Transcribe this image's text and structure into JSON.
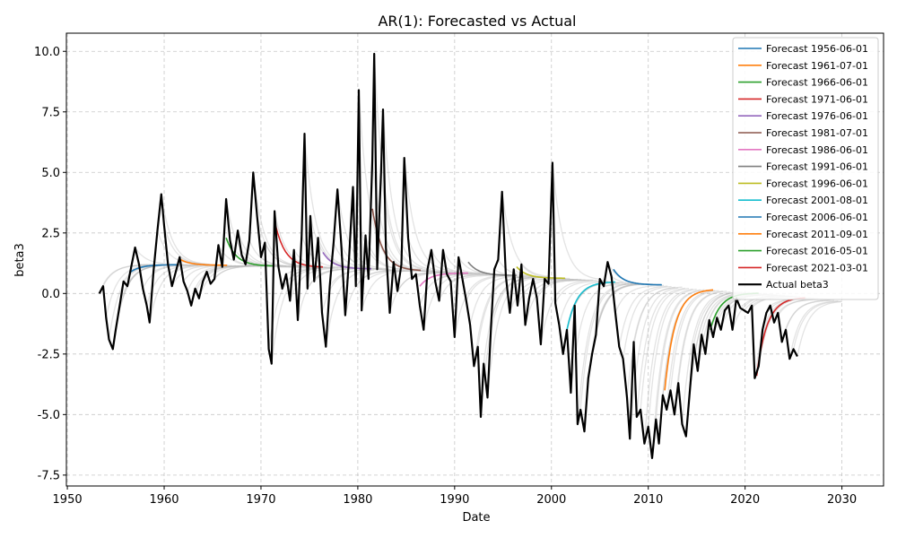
{
  "chart_data": {
    "type": "line",
    "title": "AR(1): Forecasted vs Actual",
    "xlabel": "Date",
    "ylabel": "beta3",
    "xlim": [
      1949.9,
      2034.3
    ],
    "ylim": [
      -7.95,
      10.75
    ],
    "x_ticks": [
      1950,
      1960,
      1970,
      1980,
      1990,
      2000,
      2010,
      2020,
      2030
    ],
    "y_ticks": [
      -7.5,
      -5.0,
      -2.5,
      0.0,
      2.5,
      5.0,
      7.5,
      10.0
    ],
    "grid": true,
    "legend_position": "top-right",
    "colors": {
      "actual": "#000000",
      "background_forecast": "#b0b0b0",
      "grid": "#b0b0b0"
    },
    "series": [
      {
        "name": "Forecast 1956-06-01",
        "color": "#1f77b4",
        "start": [
          1956.4,
          0.85
        ],
        "end_year": 1961.4
      },
      {
        "name": "Forecast 1961-07-01",
        "color": "#ff7f0e",
        "start": [
          1961.5,
          1.45
        ],
        "end_year": 1966.5
      },
      {
        "name": "Forecast 1966-06-01",
        "color": "#2ca02c",
        "start": [
          1966.4,
          2.3
        ],
        "end_year": 1971.4
      },
      {
        "name": "Forecast 1971-06-01",
        "color": "#d62728",
        "start": [
          1971.4,
          3.0
        ],
        "end_year": 1976.4
      },
      {
        "name": "Forecast 1976-06-01",
        "color": "#9467bd",
        "start": [
          1976.4,
          1.7
        ],
        "end_year": 1981.4
      },
      {
        "name": "Forecast 1981-07-01",
        "color": "#8c564b",
        "start": [
          1981.5,
          3.5
        ],
        "end_year": 1986.5
      },
      {
        "name": "Forecast 1986-06-01",
        "color": "#e377c2",
        "start": [
          1986.4,
          0.3
        ],
        "end_year": 1991.4
      },
      {
        "name": "Forecast 1991-06-01",
        "color": "#7f7f7f",
        "start": [
          1991.4,
          1.3
        ],
        "end_year": 1996.4
      },
      {
        "name": "Forecast 1996-06-01",
        "color": "#bcbd22",
        "start": [
          1996.4,
          1.1
        ],
        "end_year": 2001.4
      },
      {
        "name": "Forecast 2001-08-01",
        "color": "#17becf",
        "start": [
          2001.6,
          -1.5
        ],
        "end_year": 2006.6
      },
      {
        "name": "Forecast 2006-06-01",
        "color": "#1f77b4",
        "start": [
          2006.4,
          1.0
        ],
        "end_year": 2011.4
      },
      {
        "name": "Forecast 2011-09-01",
        "color": "#ff7f0e",
        "start": [
          2011.7,
          -4.0
        ],
        "end_year": 2016.7
      },
      {
        "name": "Forecast 2016-05-01",
        "color": "#2ca02c",
        "start": [
          2016.4,
          -1.5
        ],
        "end_year": 2021.4
      },
      {
        "name": "Forecast 2021-03-01",
        "color": "#d62728",
        "start": [
          2021.2,
          -3.4
        ],
        "end_year": 2026.2
      },
      {
        "name": "Actual beta3",
        "color": "#000000"
      }
    ],
    "forecast_long_run_mean": -0.3,
    "forecast_long_run_mean_start": 1.2,
    "forecast_long_run_mean_end": -0.3,
    "actual_beta3": [
      [
        1953.3,
        0.0
      ],
      [
        1953.7,
        0.3
      ],
      [
        1954.0,
        -1.0
      ],
      [
        1954.3,
        -1.9
      ],
      [
        1954.7,
        -2.3
      ],
      [
        1955.0,
        -1.5
      ],
      [
        1955.4,
        -0.5
      ],
      [
        1955.8,
        0.5
      ],
      [
        1956.2,
        0.3
      ],
      [
        1956.6,
        1.1
      ],
      [
        1957.0,
        1.9
      ],
      [
        1957.4,
        1.2
      ],
      [
        1957.8,
        0.2
      ],
      [
        1958.2,
        -0.5
      ],
      [
        1958.5,
        -1.2
      ],
      [
        1958.9,
        0.9
      ],
      [
        1959.3,
        2.6
      ],
      [
        1959.7,
        4.1
      ],
      [
        1960.0,
        2.8
      ],
      [
        1960.4,
        1.2
      ],
      [
        1960.8,
        0.3
      ],
      [
        1961.2,
        0.9
      ],
      [
        1961.6,
        1.5
      ],
      [
        1962.0,
        0.5
      ],
      [
        1962.4,
        0.1
      ],
      [
        1962.8,
        -0.5
      ],
      [
        1963.2,
        0.2
      ],
      [
        1963.6,
        -0.2
      ],
      [
        1964.0,
        0.5
      ],
      [
        1964.4,
        0.9
      ],
      [
        1964.8,
        0.4
      ],
      [
        1965.2,
        0.6
      ],
      [
        1965.6,
        2.0
      ],
      [
        1966.0,
        1.1
      ],
      [
        1966.4,
        3.9
      ],
      [
        1966.8,
        2.2
      ],
      [
        1967.2,
        1.4
      ],
      [
        1967.6,
        2.6
      ],
      [
        1968.0,
        1.6
      ],
      [
        1968.4,
        1.2
      ],
      [
        1968.8,
        2.2
      ],
      [
        1969.2,
        5.0
      ],
      [
        1969.6,
        3.2
      ],
      [
        1970.0,
        1.5
      ],
      [
        1970.4,
        2.1
      ],
      [
        1970.8,
        -2.3
      ],
      [
        1971.1,
        -2.9
      ],
      [
        1971.4,
        3.4
      ],
      [
        1971.8,
        1.1
      ],
      [
        1972.2,
        0.2
      ],
      [
        1972.6,
        0.8
      ],
      [
        1973.0,
        -0.3
      ],
      [
        1973.4,
        1.8
      ],
      [
        1973.8,
        -1.1
      ],
      [
        1974.2,
        2.4
      ],
      [
        1974.5,
        6.6
      ],
      [
        1974.8,
        0.2
      ],
      [
        1975.1,
        3.2
      ],
      [
        1975.5,
        0.5
      ],
      [
        1975.9,
        2.3
      ],
      [
        1976.3,
        -0.8
      ],
      [
        1976.7,
        -2.2
      ],
      [
        1977.1,
        0.3
      ],
      [
        1977.5,
        2.1
      ],
      [
        1977.9,
        4.3
      ],
      [
        1978.3,
        2.0
      ],
      [
        1978.7,
        -0.9
      ],
      [
        1979.1,
        1.5
      ],
      [
        1979.5,
        4.4
      ],
      [
        1979.8,
        0.3
      ],
      [
        1980.1,
        8.4
      ],
      [
        1980.4,
        -0.7
      ],
      [
        1980.8,
        2.4
      ],
      [
        1981.1,
        0.6
      ],
      [
        1981.5,
        5.5
      ],
      [
        1981.7,
        9.9
      ],
      [
        1982.0,
        1.0
      ],
      [
        1982.4,
        5.0
      ],
      [
        1982.6,
        7.6
      ],
      [
        1982.9,
        1.9
      ],
      [
        1983.3,
        -0.8
      ],
      [
        1983.7,
        1.3
      ],
      [
        1984.1,
        0.1
      ],
      [
        1984.5,
        1.2
      ],
      [
        1984.8,
        5.6
      ],
      [
        1985.2,
        2.3
      ],
      [
        1985.6,
        0.6
      ],
      [
        1986.0,
        0.8
      ],
      [
        1986.4,
        -0.5
      ],
      [
        1986.8,
        -1.5
      ],
      [
        1987.2,
        1.0
      ],
      [
        1987.6,
        1.8
      ],
      [
        1988.0,
        0.5
      ],
      [
        1988.4,
        -0.3
      ],
      [
        1988.8,
        1.8
      ],
      [
        1989.2,
        0.8
      ],
      [
        1989.6,
        0.5
      ],
      [
        1990.0,
        -1.8
      ],
      [
        1990.4,
        1.5
      ],
      [
        1990.8,
        0.6
      ],
      [
        1991.2,
        -0.3
      ],
      [
        1991.6,
        -1.3
      ],
      [
        1992.0,
        -3.0
      ],
      [
        1992.4,
        -2.2
      ],
      [
        1992.7,
        -5.1
      ],
      [
        1993.0,
        -2.9
      ],
      [
        1993.4,
        -4.3
      ],
      [
        1993.8,
        -1.1
      ],
      [
        1994.1,
        1.0
      ],
      [
        1994.5,
        1.4
      ],
      [
        1994.9,
        4.2
      ],
      [
        1995.3,
        0.7
      ],
      [
        1995.7,
        -0.8
      ],
      [
        1996.1,
        1.0
      ],
      [
        1996.5,
        -0.5
      ],
      [
        1996.9,
        1.2
      ],
      [
        1997.3,
        -1.3
      ],
      [
        1997.7,
        -0.2
      ],
      [
        1998.1,
        0.6
      ],
      [
        1998.5,
        -0.2
      ],
      [
        1998.9,
        -2.1
      ],
      [
        1999.3,
        0.6
      ],
      [
        1999.7,
        0.4
      ],
      [
        2000.1,
        5.4
      ],
      [
        2000.4,
        -0.4
      ],
      [
        2000.8,
        -1.3
      ],
      [
        2001.2,
        -2.5
      ],
      [
        2001.6,
        -1.5
      ],
      [
        2002.0,
        -4.1
      ],
      [
        2002.4,
        -0.5
      ],
      [
        2002.7,
        -5.4
      ],
      [
        2003.0,
        -4.8
      ],
      [
        2003.4,
        -5.7
      ],
      [
        2003.8,
        -3.5
      ],
      [
        2004.2,
        -2.5
      ],
      [
        2004.6,
        -1.7
      ],
      [
        2005.0,
        0.6
      ],
      [
        2005.4,
        0.3
      ],
      [
        2005.8,
        1.3
      ],
      [
        2006.2,
        0.7
      ],
      [
        2006.6,
        -0.8
      ],
      [
        2007.0,
        -2.2
      ],
      [
        2007.4,
        -2.7
      ],
      [
        2007.8,
        -4.3
      ],
      [
        2008.1,
        -6.0
      ],
      [
        2008.5,
        -2.0
      ],
      [
        2008.8,
        -5.1
      ],
      [
        2009.2,
        -4.8
      ],
      [
        2009.6,
        -6.2
      ],
      [
        2010.0,
        -5.5
      ],
      [
        2010.4,
        -6.8
      ],
      [
        2010.8,
        -5.2
      ],
      [
        2011.1,
        -6.2
      ],
      [
        2011.5,
        -4.2
      ],
      [
        2011.9,
        -4.8
      ],
      [
        2012.3,
        -4.0
      ],
      [
        2012.7,
        -5.0
      ],
      [
        2013.1,
        -3.7
      ],
      [
        2013.5,
        -5.4
      ],
      [
        2013.9,
        -5.9
      ],
      [
        2014.3,
        -4.0
      ],
      [
        2014.7,
        -2.1
      ],
      [
        2015.1,
        -3.2
      ],
      [
        2015.5,
        -1.7
      ],
      [
        2015.9,
        -2.5
      ],
      [
        2016.3,
        -1.1
      ],
      [
        2016.7,
        -1.8
      ],
      [
        2017.1,
        -1.0
      ],
      [
        2017.5,
        -1.5
      ],
      [
        2017.9,
        -0.7
      ],
      [
        2018.3,
        -0.5
      ],
      [
        2018.7,
        -1.5
      ],
      [
        2019.1,
        -0.2
      ],
      [
        2019.5,
        -0.6
      ],
      [
        2019.9,
        -0.7
      ],
      [
        2020.3,
        -0.8
      ],
      [
        2020.7,
        -0.5
      ],
      [
        2021.0,
        -3.5
      ],
      [
        2021.4,
        -3.0
      ],
      [
        2021.8,
        -1.5
      ],
      [
        2022.2,
        -0.8
      ],
      [
        2022.6,
        -0.5
      ],
      [
        2023.0,
        -1.2
      ],
      [
        2023.4,
        -0.8
      ],
      [
        2023.8,
        -2.0
      ],
      [
        2024.2,
        -1.5
      ],
      [
        2024.6,
        -2.7
      ],
      [
        2025.0,
        -2.3
      ],
      [
        2025.4,
        -2.6
      ]
    ]
  }
}
